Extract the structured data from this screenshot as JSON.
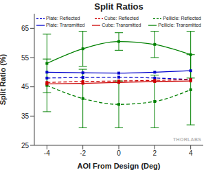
{
  "chart_data": {
    "type": "line",
    "title": "Split Ratios",
    "x_label": "AOI From Design (Deg)",
    "y_label": "Split Ratio (%)",
    "x": [
      -4,
      -2,
      0,
      2,
      4
    ],
    "xlim": [
      -4.7,
      4.7
    ],
    "xticks": [
      -4,
      -2,
      0,
      2,
      4
    ],
    "ylim": [
      25,
      70
    ],
    "yticks": [
      25,
      35,
      45,
      55,
      65
    ],
    "grid": false,
    "legend": "top",
    "annotations": [
      "THORLABS"
    ],
    "series": [
      {
        "name": "Plate: Reflected",
        "color": "#0000cc",
        "line_style": "dashed",
        "marker": "square",
        "values": [
          48,
          48.2,
          48.3,
          48,
          47.5
        ]
      },
      {
        "name": "Cube: Reflected",
        "color": "#cc0000",
        "line_style": "dashed",
        "marker": "square",
        "values": [
          46.5,
          46.8,
          47,
          47.2,
          47.5
        ]
      },
      {
        "name": "Pellicle: Reflected",
        "color": "#008000",
        "line_style": "dashed",
        "marker": "square",
        "values": [
          45.5,
          41,
          39,
          40,
          44
        ],
        "errors": [
          9,
          10,
          8,
          9,
          12
        ]
      },
      {
        "name": "Plate: Transmitted",
        "color": "#0000cc",
        "line_style": "solid",
        "marker": "square",
        "values": [
          50,
          49.8,
          49.7,
          50,
          50.5
        ]
      },
      {
        "name": "Cube: Transmitted",
        "color": "#cc0000",
        "line_style": "solid",
        "marker": "square",
        "values": [
          46,
          46.2,
          46.5,
          46.8,
          47
        ]
      },
      {
        "name": "Pellicle: Transmitted",
        "color": "#008000",
        "line_style": "solid",
        "marker": "square",
        "values": [
          53,
          58,
          60.5,
          59.5,
          56
        ],
        "errors": [
          10,
          6,
          3,
          4.5,
          8
        ]
      }
    ]
  }
}
